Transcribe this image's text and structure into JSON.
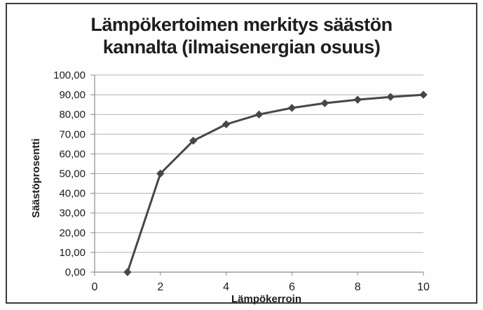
{
  "ui": {
    "title_line1": "Lämpökertoimen merkitys säästön",
    "title_line2": "kannalta (ilmaisenergian osuus)"
  },
  "chart_data": {
    "type": "line",
    "title": "Lämpökertoimen merkitys säästön kannalta (ilmaisenergian osuus)",
    "xlabel": "Lämpökerroin",
    "ylabel": "Säästöprosentti",
    "x": [
      1,
      2,
      3,
      4,
      5,
      6,
      7,
      8,
      9,
      10
    ],
    "y": [
      0,
      50,
      66.67,
      75,
      80,
      83.33,
      85.71,
      87.5,
      88.89,
      90
    ],
    "xlim": [
      0,
      10
    ],
    "ylim": [
      0,
      100
    ],
    "x_tick_values": [
      0,
      2,
      4,
      6,
      8,
      10
    ],
    "x_tick_labels": [
      "0",
      "2",
      "4",
      "6",
      "8",
      "10"
    ],
    "y_tick_values": [
      0,
      10,
      20,
      30,
      40,
      50,
      60,
      70,
      80,
      90,
      100
    ],
    "y_tick_labels": [
      "0,00",
      "10,00",
      "20,00",
      "30,00",
      "40,00",
      "50,00",
      "60,00",
      "70,00",
      "80,00",
      "90,00",
      "100,00"
    ],
    "grid": "horizontal",
    "legend": "none",
    "marker": "diamond",
    "colors": {
      "line": "#47474b",
      "marker": "#47474b",
      "grid": "#b3b3b3",
      "axis": "#8c8c8c",
      "text": "#1c1c1c",
      "frame_border": "#3b3b3b",
      "background": "#fefefe"
    }
  }
}
